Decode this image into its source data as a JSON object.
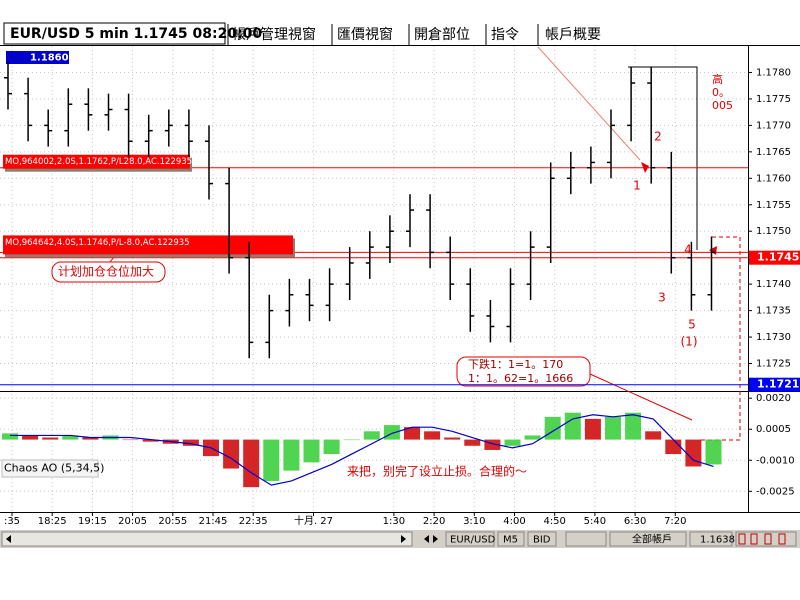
{
  "tabs": [
    "EUR/USD 5 min 1.1745 08:20:00",
    "帳戶管理視窗",
    "匯價視窗",
    "開倉部位",
    "指令",
    "帳戶概要"
  ],
  "chart_data": [
    {
      "type": "ohlc",
      "top_label": "1.1860",
      "categories": [
        ":35",
        null,
        "18:25",
        null,
        "19:15",
        null,
        "20:05",
        null,
        "20:55",
        null,
        "21:45",
        null,
        "22:35",
        null,
        null,
        "十月. 27",
        null,
        null,
        null,
        "1:30",
        null,
        "2:20",
        null,
        "3:10",
        null,
        "4:00",
        null,
        "4:50",
        null,
        "5:40",
        null,
        "6:30",
        null,
        "7:20",
        null,
        null
      ],
      "open": [
        1.1779,
        1.1776,
        1.177,
        1.1769,
        1.1774,
        1.1772,
        1.1773,
        1.1767,
        1.1769,
        1.177,
        1.1767,
        1.1759,
        1.1745,
        1.1729,
        1.1735,
        1.1738,
        1.1736,
        1.174,
        1.1744,
        1.1747,
        1.175,
        1.1754,
        1.1746,
        1.174,
        1.1734,
        1.1732,
        1.174,
        1.1747,
        1.176,
        1.1762,
        1.1763,
        1.177,
        1.1778,
        1.1762,
        1.1745,
        1.1738
      ],
      "high": [
        1.1782,
        1.1779,
        1.1773,
        1.1777,
        1.1777,
        1.1776,
        1.1776,
        1.1772,
        1.1773,
        1.1773,
        1.177,
        1.1762,
        1.1748,
        1.1738,
        1.1741,
        1.1741,
        1.1743,
        1.1747,
        1.175,
        1.1753,
        1.1757,
        1.1757,
        1.1749,
        1.1743,
        1.1737,
        1.1743,
        1.175,
        1.1763,
        1.1765,
        1.1766,
        1.1773,
        1.1781,
        1.1781,
        1.1765,
        1.1748,
        1.1749
      ],
      "low": [
        1.1773,
        1.1767,
        1.1766,
        1.1766,
        1.1769,
        1.1769,
        1.1764,
        1.1764,
        1.1766,
        1.1764,
        1.1756,
        1.1742,
        1.1726,
        1.1726,
        1.1732,
        1.1733,
        1.1733,
        1.1737,
        1.1741,
        1.1744,
        1.1747,
        1.1743,
        1.1737,
        1.1731,
        1.1729,
        1.1729,
        1.1737,
        1.1744,
        1.1757,
        1.1759,
        1.176,
        1.1767,
        1.1759,
        1.1742,
        1.1735,
        1.1735
      ],
      "close": [
        1.1776,
        1.177,
        1.1769,
        1.1774,
        1.1772,
        1.1773,
        1.1767,
        1.1769,
        1.177,
        1.1767,
        1.1759,
        1.1745,
        1.1729,
        1.1735,
        1.1738,
        1.1736,
        1.174,
        1.1744,
        1.1747,
        1.175,
        1.1754,
        1.1746,
        1.174,
        1.1734,
        1.1732,
        1.174,
        1.1747,
        1.176,
        1.1762,
        1.1763,
        1.177,
        1.1778,
        1.1762,
        1.1745,
        1.1738,
        1.1746
      ],
      "color": "#000000",
      "ylim": [
        1.172,
        1.1785
      ],
      "yticks": [
        {
          "value": 1.178,
          "label": "1.1780"
        },
        1.1775,
        {
          "value": 1.177,
          "label": "1.1770"
        },
        1.1765,
        {
          "value": 1.176,
          "label": "1.1760"
        },
        1.1755,
        {
          "value": 1.175,
          "label": "1.1750"
        },
        1.1745,
        {
          "value": 1.174,
          "label": "1.1740"
        },
        1.1735,
        {
          "value": 1.173,
          "label": "1.1730"
        },
        1.1725
      ],
      "grid": true,
      "orders": [
        {
          "value": 1.1762,
          "label": "MO,964002,2.0S,1.1762,P/L28.0,AC.122935",
          "color": "#ff0000"
        },
        {
          "value": 1.1746,
          "label": "MO,964642,4.0S,1.1746,P/L-8.0,AC.122935",
          "color": "#ff0000"
        }
      ],
      "price_lines": [
        {
          "value": 1.1745,
          "color": "#ff0000"
        },
        {
          "value": 1.1721,
          "color": "#0000ff"
        }
      ],
      "annotations": [
        "计划加仓仓位加大",
        "下跌1：1=1。170",
        "1：1。62=1。1666"
      ],
      "high_note": [
        "高",
        "0。",
        "005"
      ],
      "waves": [
        "1",
        "2",
        "3",
        "4",
        "5",
        "(1)"
      ]
    },
    {
      "type": "histogram",
      "title": "Chaos AO (5,34,5)",
      "values": [
        0.0003,
        0.0002,
        0.0001,
        0.0002,
        0.0001,
        0.0002,
        0.0,
        -0.0001,
        -0.0002,
        -0.0003,
        -0.0008,
        -0.0014,
        -0.0023,
        -0.002,
        -0.0015,
        -0.0011,
        -0.0007,
        0.0,
        0.0004,
        0.0007,
        0.0006,
        0.0004,
        0.0001,
        -0.0003,
        -0.0005,
        -0.0003,
        0.0002,
        0.0011,
        0.0013,
        0.001,
        0.0011,
        0.0013,
        0.0004,
        -0.0007,
        -0.0013,
        -0.0012
      ],
      "signal": [
        0.0002,
        0.0002,
        0.0002,
        0.0002,
        0.0001,
        0.0001,
        0.0001,
        0.0,
        -0.0001,
        -0.0002,
        -0.0004,
        -0.0009,
        -0.0016,
        -0.0022,
        -0.002,
        -0.0016,
        -0.0012,
        -0.0007,
        -0.0002,
        0.0003,
        0.0006,
        0.0006,
        0.0004,
        0.0001,
        -0.0002,
        -0.0004,
        -0.0002,
        0.0004,
        0.001,
        0.0012,
        0.0011,
        0.0012,
        0.001,
        0.0,
        -0.001,
        -0.0013
      ],
      "up_color": "#33cc33",
      "down_color": "#cc0000",
      "signal_color": "#0000cc",
      "ylim": [
        -0.0035,
        0.0023
      ],
      "yticks": [
        {
          "value": 0.002,
          "label": "0.0020"
        },
        0.0005,
        {
          "value": -0.001,
          "label": "-0.0010"
        },
        -0.0025
      ],
      "note": "来把，别完了设立止损。合理的～"
    }
  ],
  "toolbar": [
    "EUR/USD",
    "M5",
    "BID",
    "全部帳戶",
    "1.1638"
  ]
}
